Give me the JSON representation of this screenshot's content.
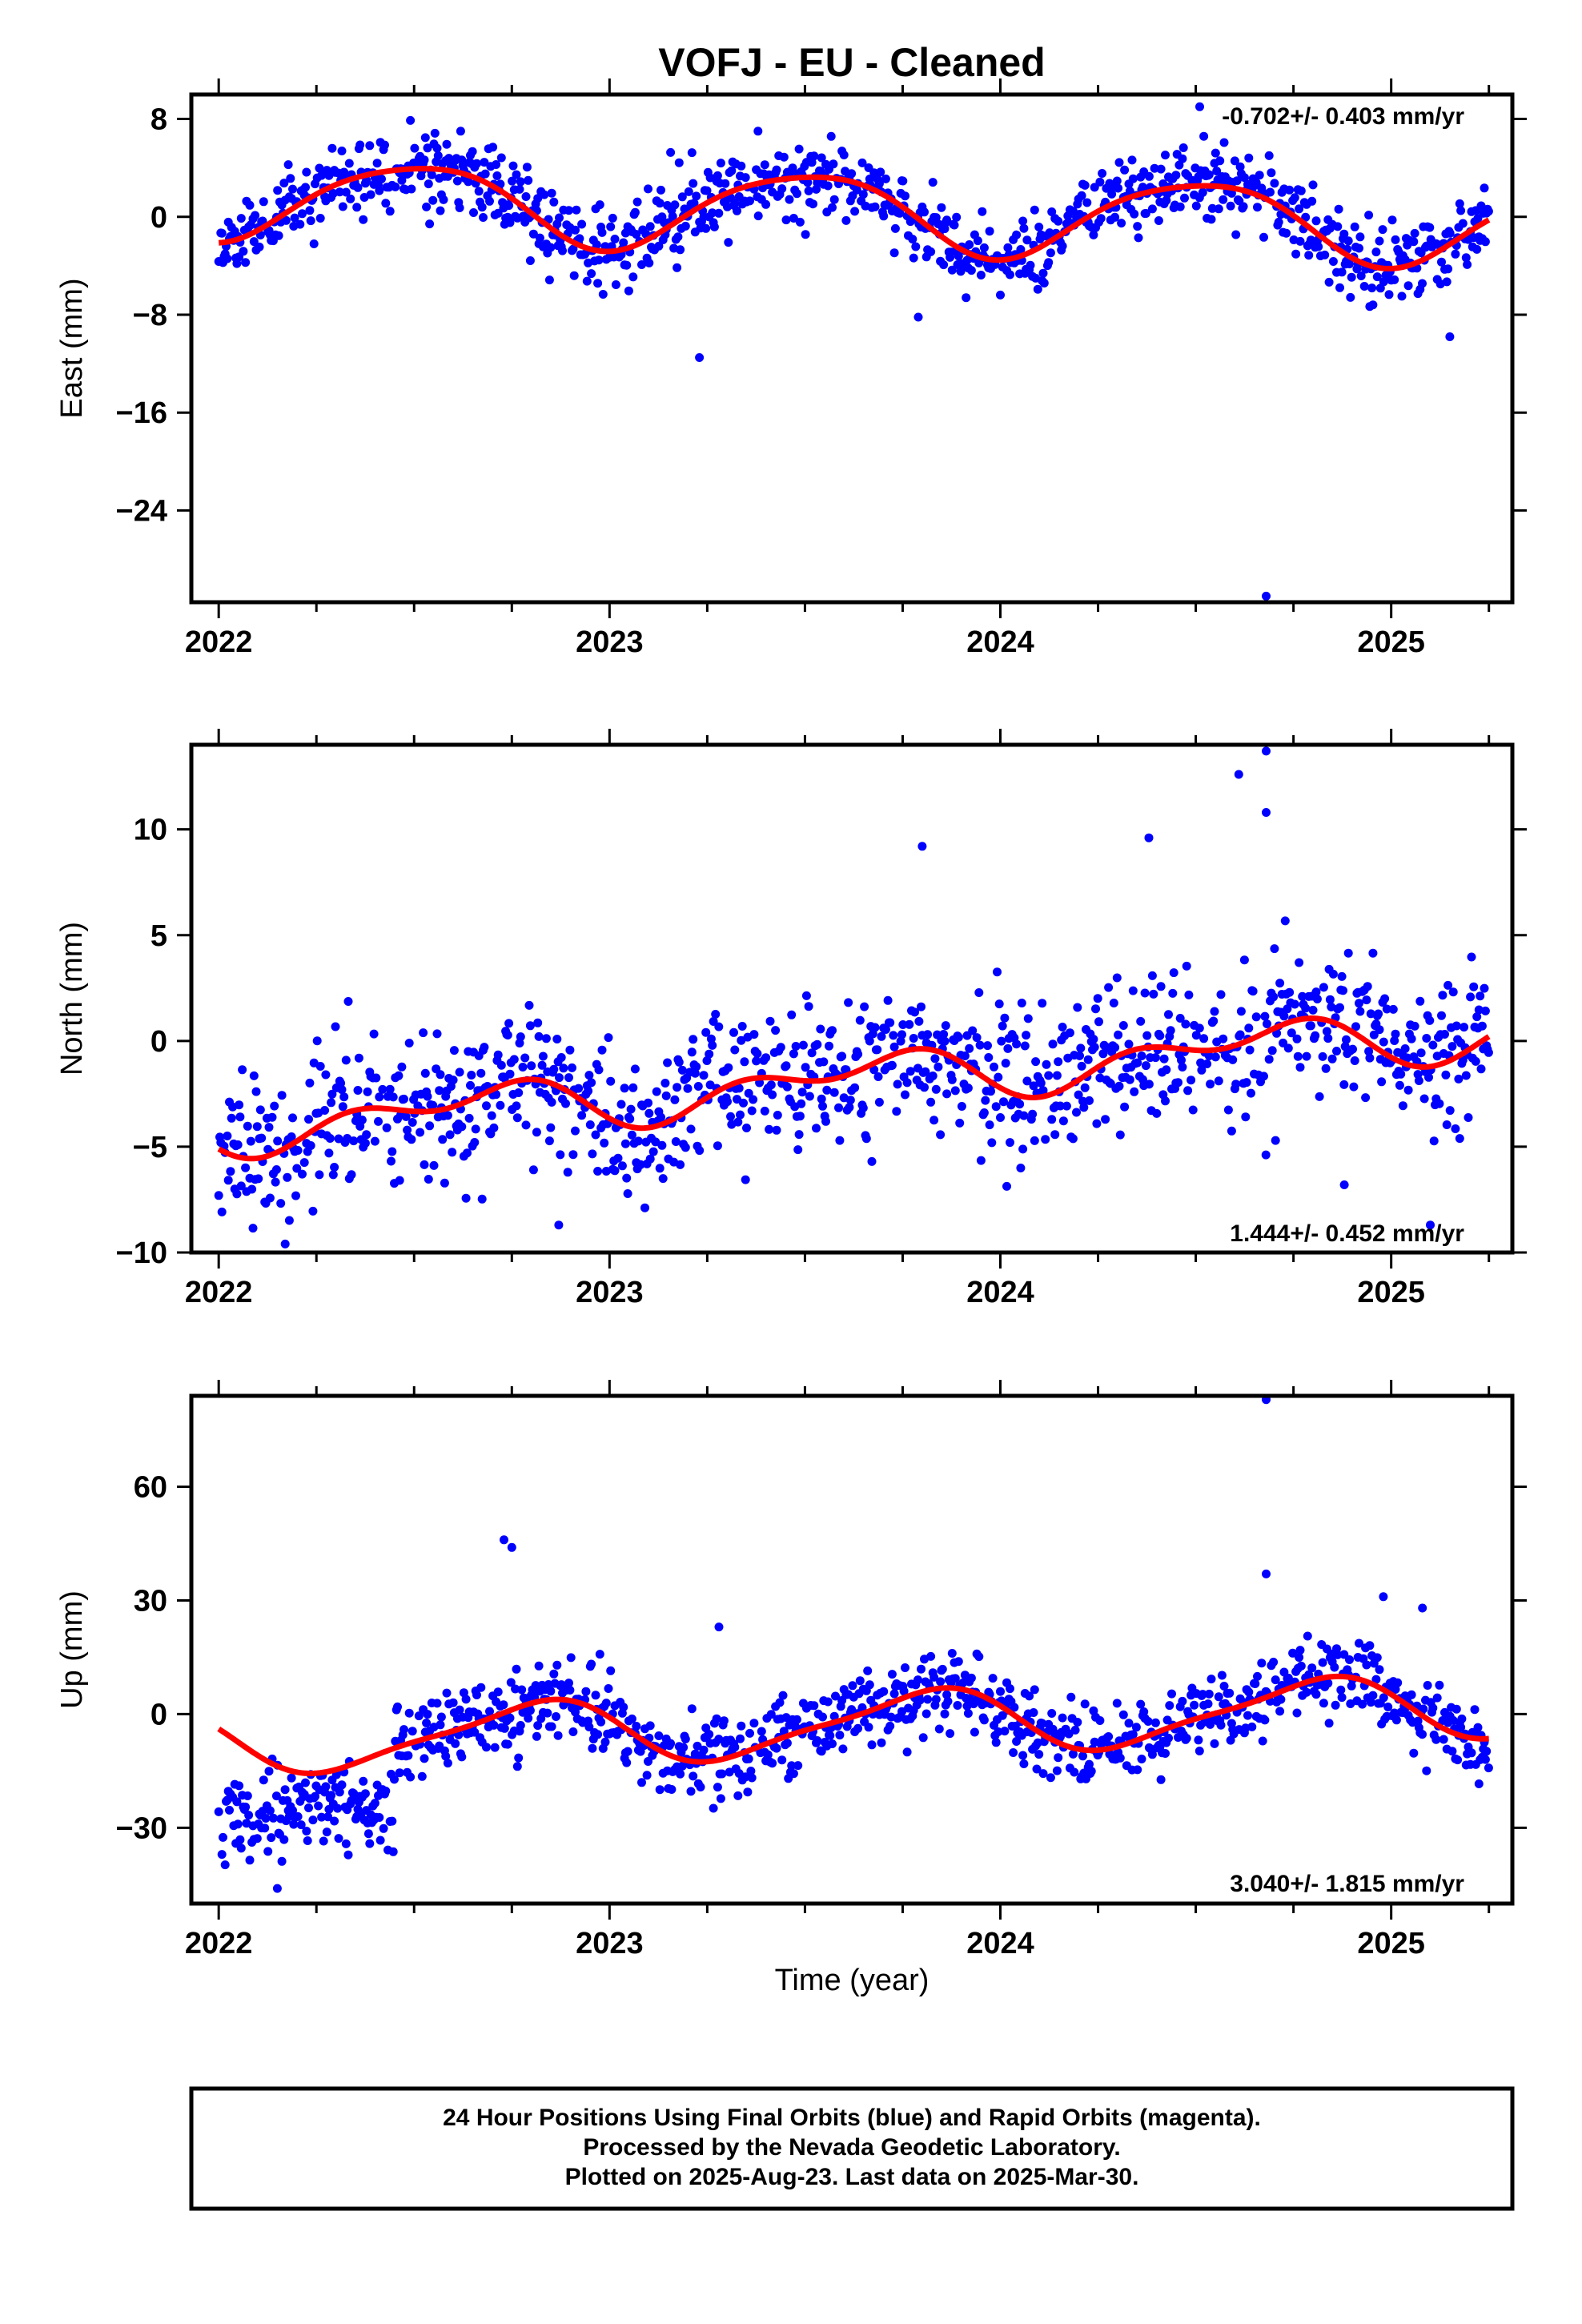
{
  "title": "VOFJ  - EU - Cleaned",
  "xlabel": "Time (year)",
  "colors": {
    "data": "#0000ff",
    "model": "#ff0000",
    "frame": "#000000"
  },
  "footer": {
    "line1": "24 Hour Positions Using Final Orbits (blue) and Rapid Orbits (magenta).",
    "line2": "Processed by the Nevada Geodetic Laboratory.",
    "line3": "Plotted on 2025-Aug-23. Last data on 2025-Mar-30."
  },
  "chart_data": [
    {
      "type": "scatter",
      "component": "east",
      "ylabel": "East (mm)",
      "rate_text": "-0.702+/- 0.403 mm/yr",
      "xlim": [
        2021.93,
        2025.31
      ],
      "ylim": [
        -31.5,
        10
      ],
      "y_ticks": [
        8,
        0,
        -8,
        -16,
        -24
      ],
      "y_tick_labels": [
        "8",
        "0",
        "−8",
        "−16",
        "−24"
      ],
      "x_ticks": [
        2022,
        2023,
        2024,
        2025
      ],
      "x_tick_labels": [
        "2022",
        "2023",
        "2024",
        "2025"
      ],
      "trend": {
        "offset": 0.5,
        "rate": -0.702,
        "annual_amp": 3.2,
        "annual_phase": 0.25,
        "semi_amp": 0.5,
        "semi_phase": 0.1
      },
      "scatter_sd": 1.6,
      "seed": 11,
      "outliers": [
        {
          "x": 2024.68,
          "y": -31
        },
        {
          "x": 2023.23,
          "y": -11.5
        },
        {
          "x": 2024.51,
          "y": 9
        },
        {
          "x": 2023.38,
          "y": 7
        },
        {
          "x": 2023.79,
          "y": -8.2
        },
        {
          "x": 2025.15,
          "y": -9.8
        }
      ]
    },
    {
      "type": "scatter",
      "component": "north",
      "ylabel": "North (mm)",
      "rate_text": "1.444+/- 0.452 mm/yr",
      "xlim": [
        2021.93,
        2025.31
      ],
      "ylim": [
        -10,
        14
      ],
      "y_ticks": [
        10,
        5,
        0,
        -5,
        -10
      ],
      "y_tick_labels": [
        "10",
        "5",
        "0",
        "−5",
        "−10"
      ],
      "x_ticks": [
        2022,
        2023,
        2024,
        2025
      ],
      "x_tick_labels": [
        "2022",
        "2023",
        "2024",
        "2025"
      ],
      "trend": {
        "offset": -2.0,
        "rate": 1.444,
        "annual_amp": 0.9,
        "annual_phase": 0.4,
        "semi_amp": 0.7,
        "semi_phase": 0.2
      },
      "scatter_sd": 1.7,
      "seed": 23,
      "outliers": [
        {
          "x": 2024.68,
          "y": 13.7
        },
        {
          "x": 2024.61,
          "y": 12.6
        },
        {
          "x": 2024.68,
          "y": 10.8
        },
        {
          "x": 2024.38,
          "y": 9.6
        },
        {
          "x": 2023.8,
          "y": 9.2
        },
        {
          "x": 2022.87,
          "y": -8.7
        },
        {
          "x": 2024.88,
          "y": -6.8
        },
        {
          "x": 2025.1,
          "y": -8.7
        },
        {
          "x": 2022.17,
          "y": -9.6
        }
      ]
    },
    {
      "type": "scatter",
      "component": "up",
      "ylabel": "Up (mm)",
      "rate_text": "3.040+/- 1.815 mm/yr",
      "xlim": [
        2021.93,
        2025.31
      ],
      "ylim": [
        -50,
        84
      ],
      "y_ticks": [
        60,
        30,
        0,
        -30
      ],
      "y_tick_labels": [
        "60",
        "30",
        "0",
        "−30"
      ],
      "x_ticks": [
        2022,
        2023,
        2024,
        2025
      ],
      "x_tick_labels": [
        "2022",
        "2023",
        "2024",
        "2025"
      ],
      "trend": {
        "offset": -3.0,
        "rate": 3.04,
        "annual_amp": 8.0,
        "annual_phase": 0.55,
        "semi_amp": 2.0,
        "semi_phase": 0.3
      },
      "scatter_sd": 5.0,
      "step": {
        "before": 2022.45,
        "shift": -24,
        "sd": 5.5
      },
      "seed": 37,
      "outliers": [
        {
          "x": 2024.68,
          "y": 83
        },
        {
          "x": 2022.73,
          "y": 46
        },
        {
          "x": 2022.75,
          "y": 44
        },
        {
          "x": 2024.68,
          "y": 37
        },
        {
          "x": 2024.98,
          "y": 31
        },
        {
          "x": 2023.28,
          "y": 23
        },
        {
          "x": 2025.08,
          "y": 28
        },
        {
          "x": 2022.15,
          "y": -46
        }
      ]
    }
  ]
}
